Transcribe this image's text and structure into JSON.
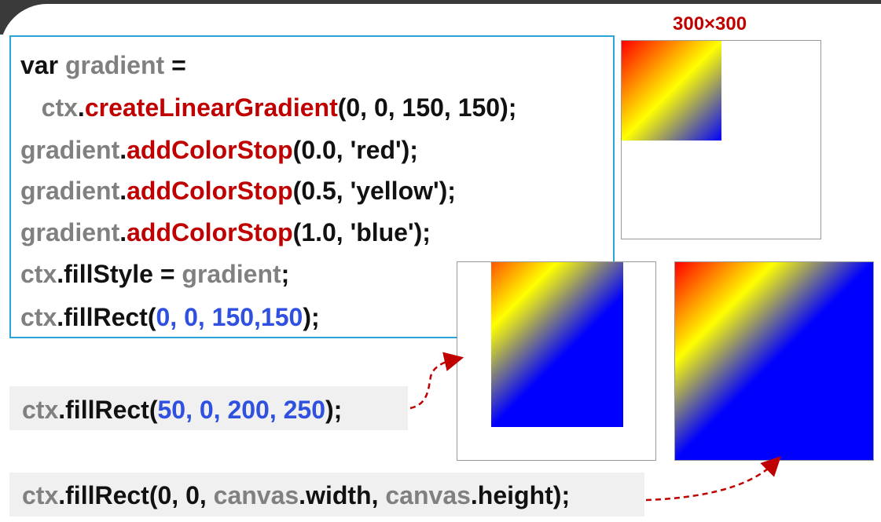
{
  "code_lines": [
    [
      {
        "t": "var ",
        "c": "k"
      },
      {
        "t": "gradient",
        "c": "g"
      },
      {
        "t": " =",
        "c": "k"
      }
    ],
    [
      {
        "t": "   ctx",
        "c": "g"
      },
      {
        "t": ".",
        "c": "k"
      },
      {
        "t": "createLinearGradient",
        "c": "f"
      },
      {
        "t": "(0, 0, 150, 150);",
        "c": "k"
      }
    ],
    [
      {
        "t": "gradient",
        "c": "g"
      },
      {
        "t": ".",
        "c": "k"
      },
      {
        "t": "addColorStop",
        "c": "f"
      },
      {
        "t": "(0.0, 'red');",
        "c": "k"
      }
    ],
    [
      {
        "t": "gradient",
        "c": "g"
      },
      {
        "t": ".",
        "c": "k"
      },
      {
        "t": "addColorStop",
        "c": "f"
      },
      {
        "t": "(0.5, 'yellow');",
        "c": "k"
      }
    ],
    [
      {
        "t": "gradient",
        "c": "g"
      },
      {
        "t": ".",
        "c": "k"
      },
      {
        "t": "addColorStop",
        "c": "f"
      },
      {
        "t": "(1.0, 'blue');",
        "c": "k"
      }
    ],
    [
      {
        "t": "ctx",
        "c": "g"
      },
      {
        "t": ".fillStyle = ",
        "c": "k"
      },
      {
        "t": "gradient",
        "c": "g"
      },
      {
        "t": ";",
        "c": "k"
      }
    ],
    [
      {
        "t": "ctx",
        "c": "g"
      },
      {
        "t": ".fillRect(",
        "c": "k"
      },
      {
        "t": "0, 0, 150,150",
        "c": "n"
      },
      {
        "t": ");",
        "c": "k"
      }
    ]
  ],
  "snippet_1": [
    {
      "t": "ctx",
      "c": "g"
    },
    {
      "t": ".fillRect(",
      "c": "k"
    },
    {
      "t": "50, 0, 200, 250",
      "c": "n"
    },
    {
      "t": ");",
      "c": "k"
    }
  ],
  "snippet_2": [
    {
      "t": "ctx",
      "c": "g"
    },
    {
      "t": ".fillRect(0, 0, ",
      "c": "k"
    },
    {
      "t": "canvas",
      "c": "g"
    },
    {
      "t": ".width, ",
      "c": "k"
    },
    {
      "t": "canvas",
      "c": "g"
    },
    {
      "t": ".height);",
      "c": "k"
    }
  ],
  "canvas_size_label": "300×300",
  "colors": {
    "border_code": "#2aa5d8",
    "keyword": "#111111",
    "variable": "#808080",
    "function": "#c00000",
    "number": "#3050e0",
    "arrow": "#c00000"
  }
}
